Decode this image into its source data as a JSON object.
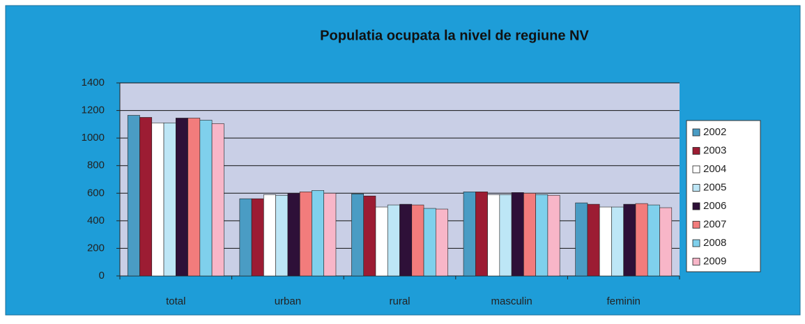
{
  "chart_data": {
    "type": "bar",
    "title": "Populatia ocupata la nivel de regiune NV",
    "categories": [
      "total",
      "urban",
      "rural",
      "masculin",
      "feminin"
    ],
    "series": [
      {
        "name": "2002",
        "color": "#4a9cc4",
        "values": [
          1165,
          560,
          595,
          610,
          530
        ]
      },
      {
        "name": "2003",
        "color": "#9c1c33",
        "values": [
          1150,
          560,
          580,
          610,
          520
        ]
      },
      {
        "name": "2004",
        "color": "#ffffff",
        "values": [
          1110,
          590,
          500,
          590,
          500
        ]
      },
      {
        "name": "2005",
        "color": "#bde6f6",
        "values": [
          1110,
          585,
          515,
          590,
          500
        ]
      },
      {
        "name": "2006",
        "color": "#2e1038",
        "values": [
          1145,
          600,
          520,
          605,
          520
        ]
      },
      {
        "name": "2007",
        "color": "#f27c7c",
        "values": [
          1145,
          610,
          515,
          600,
          525
        ]
      },
      {
        "name": "2008",
        "color": "#7fd0ec",
        "values": [
          1130,
          620,
          490,
          590,
          515
        ]
      },
      {
        "name": "2009",
        "color": "#f8b6c8",
        "values": [
          1105,
          600,
          485,
          585,
          495
        ]
      }
    ],
    "ylim": [
      0,
      1400
    ],
    "yticks": [
      0,
      200,
      400,
      600,
      800,
      1000,
      1200,
      1400
    ],
    "grid": true,
    "legend": "right"
  }
}
